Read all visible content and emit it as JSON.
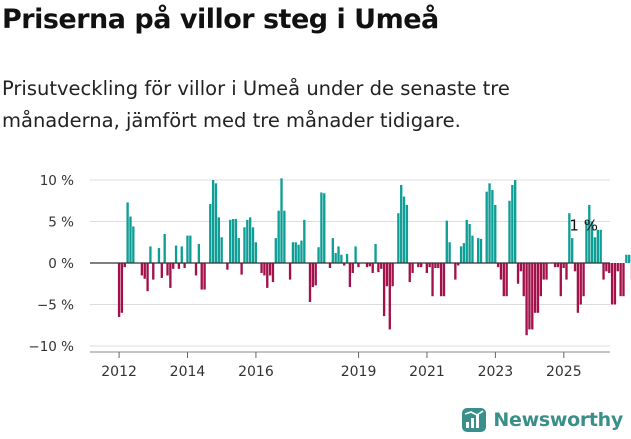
{
  "header": {
    "title": "Priserna på villor steg i Umeå",
    "subtitle": "Prisutveckling för villor i Umeå under de senaste tre månaderna, jämfört med tre månader tidigare."
  },
  "brand": {
    "name": "Newsworthy",
    "icon": "chart-logo-icon"
  },
  "colors": {
    "positive": "#0f9e96",
    "negative": "#a3114a",
    "grid": "#dddddd",
    "axis": "#333333"
  },
  "chart_data": {
    "type": "bar",
    "y_tick_labels": [
      "10 %",
      "5 %",
      "0 %",
      "−5 %",
      "−10 %"
    ],
    "y_ticks": [
      10,
      5,
      0,
      -5,
      -10
    ],
    "x_tick_labels": [
      "2012",
      "2014",
      "2016",
      "2019",
      "2021",
      "2023",
      "2025"
    ],
    "x_tick_positions": [
      2012,
      2014,
      2016,
      2019,
      2021,
      2023,
      2025
    ],
    "ylim": [
      -10.5,
      10.5
    ],
    "xlim": [
      2011.15,
      2026.35
    ],
    "grid": true,
    "last_value_label": "1 %",
    "series": [
      {
        "start": 2012.0,
        "step": 0.0833,
        "values": [
          -6.5,
          -6.0,
          -0.5,
          7.3,
          5.6,
          4.4,
          0,
          0,
          -1.5,
          -1.9,
          -3.4,
          2.0,
          -2.0,
          0,
          1.8,
          -1.8,
          3.5,
          -1.5,
          -3.0,
          -0.7,
          2.1,
          -0.7,
          2.0,
          -0.6,
          3.3,
          3.3,
          0,
          -1.5,
          2.3,
          -3.2,
          -3.2,
          0,
          7.1,
          10.0,
          9.6,
          5.5,
          3.1,
          0,
          -0.8,
          5.2,
          5.3,
          5.3,
          3.0,
          -1.4,
          4.3,
          5.2,
          5.5,
          4.3,
          2.5,
          0,
          -1.2,
          -1.5,
          -3.0,
          -1.5,
          -2.3,
          3.0,
          6.3,
          10.2,
          6.3,
          0,
          -2.0,
          2.5,
          2.5,
          2.2,
          2.7,
          5.2,
          0,
          -4.7,
          -2.9,
          -2.7,
          1.9,
          8.5,
          8.4,
          0,
          -0.6,
          3.0,
          1.2,
          2.0,
          1.0,
          -0.3,
          1.1,
          -2.9,
          -1.2,
          2.0,
          -0.5,
          0,
          0,
          -0.5,
          -0.4,
          -1.2,
          2.3,
          -1.1,
          -0.7,
          -6.4,
          -2.8,
          -8.0,
          -2.8,
          0,
          6.0,
          9.4,
          8.0,
          7.0,
          -2.3,
          -1.2,
          0,
          -0.5,
          -0.5,
          0,
          -1.2,
          -0.5,
          -4.0,
          -0.6,
          -0.6,
          -4.0,
          -4.0,
          5.1,
          2.5,
          0,
          -2.0,
          -0.3,
          2.0,
          2.4,
          5.2,
          4.7,
          3.3,
          0,
          3.0,
          2.9,
          0,
          8.6,
          9.6,
          8.8,
          7.0,
          -0.5,
          -2.0,
          -4.0,
          -4.0,
          7.5,
          9.4,
          10.0,
          -2.5,
          -1.0,
          -4.0,
          -8.7,
          -8.0,
          -8.0,
          -6.0,
          -6.0,
          -4.0,
          -2.0,
          -2.0,
          0,
          0,
          -0.5,
          -0.5,
          -4.0,
          -0.6,
          -2.0,
          6.0,
          3.0,
          -1.0,
          -6.0,
          -5.0,
          -4.0,
          5.0,
          7.0,
          5.0,
          3.1,
          4.0,
          4.0,
          -2.0,
          -1.0,
          -1.2,
          -5.0,
          -5.0,
          -1.0,
          -4.0,
          -4.0,
          1.0,
          1.0,
          -2.0,
          1.0,
          1.0,
          -1.0,
          1.0
        ]
      }
    ]
  }
}
